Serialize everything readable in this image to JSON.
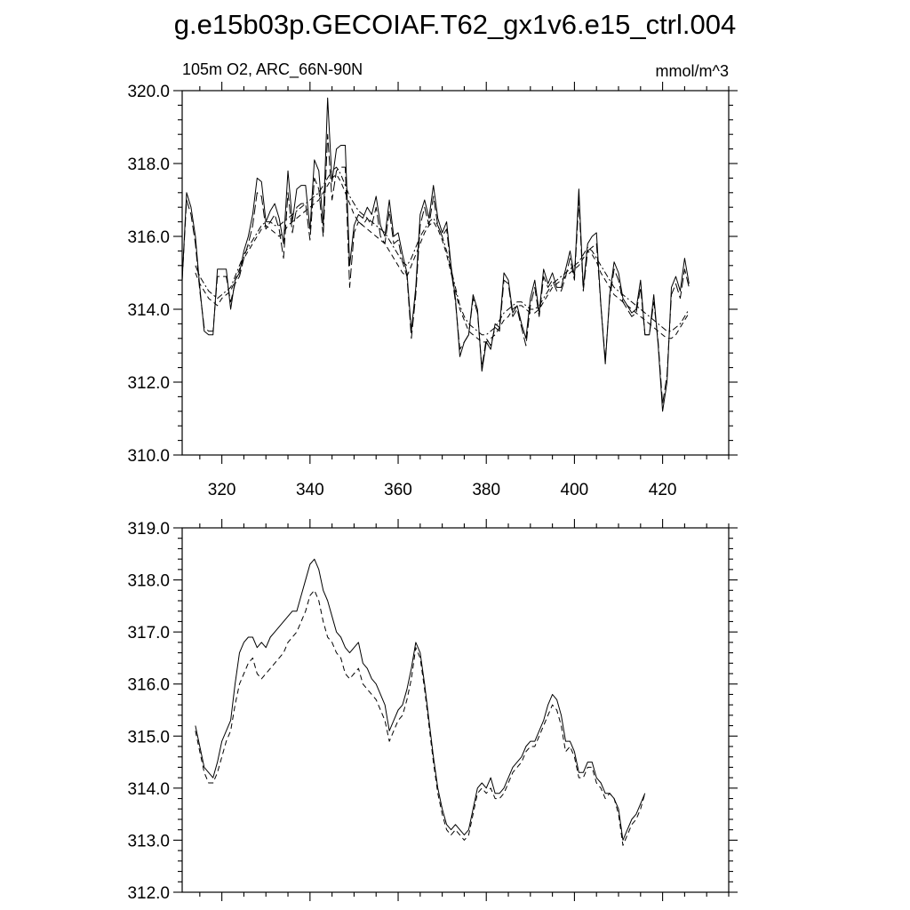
{
  "title": "g.e15b03p.GECOIAF.T62_gx1v6.e15_ctrl.004",
  "chart_data": [
    {
      "type": "line",
      "left_label": "105m O2, ARC_66N-90N",
      "right_label": "mmol/m^3",
      "xlim": [
        311,
        435
      ],
      "ylim": [
        310,
        320
      ],
      "x_ticks": [
        320,
        340,
        360,
        380,
        400,
        420
      ],
      "x_tick_labels": [
        "320",
        "340",
        "360",
        "380",
        "400",
        "420"
      ],
      "y_ticks": [
        310,
        312,
        314,
        316,
        318,
        320
      ],
      "y_tick_labels": [
        "310.0",
        "312.0",
        "314.0",
        "316.0",
        "318.0",
        "320.0"
      ],
      "series": [
        {
          "style": "solid",
          "x0": 311,
          "dx": 1,
          "values": [
            314.8,
            317.2,
            316.8,
            316.0,
            314.6,
            313.4,
            313.3,
            313.3,
            315.1,
            315.1,
            315.1,
            314.0,
            314.8,
            315.0,
            315.6,
            316.0,
            316.6,
            317.6,
            317.5,
            316.4,
            316.7,
            316.9,
            316.5,
            315.8,
            317.8,
            316.4,
            317.3,
            317.4,
            317.4,
            316.2,
            318.1,
            317.8,
            316.3,
            319.8,
            317.5,
            318.4,
            318.5,
            318.5,
            315.2,
            316.3,
            316.6,
            316.5,
            316.8,
            316.6,
            317.1,
            316.3,
            316.0,
            317.0,
            316.0,
            316.1,
            315.5,
            315.0,
            313.4,
            314.6,
            316.6,
            317.0,
            316.5,
            317.4,
            316.5,
            316.1,
            316.4,
            315.2,
            314.3,
            312.7,
            313.1,
            313.3,
            314.4,
            314.0,
            312.3,
            313.1,
            312.9,
            313.6,
            313.5,
            315.0,
            314.8,
            313.9,
            314.1,
            313.6,
            313.2,
            314.3,
            314.8,
            313.9,
            315.1,
            314.7,
            315.0,
            314.6,
            314.6,
            315.1,
            315.6,
            314.9,
            317.3,
            314.6,
            315.8,
            316.0,
            316.1,
            314.1,
            312.5,
            314.4,
            315.3,
            315.0,
            314.3,
            314.1,
            313.9,
            314.0,
            314.8,
            313.3,
            313.3,
            314.4,
            313.0,
            311.2,
            312.0,
            314.6,
            314.9,
            314.5,
            315.4,
            314.7
          ]
        },
        {
          "style": "long-dash",
          "x0": 311,
          "dx": 1,
          "values": [
            314.8,
            317.0,
            316.6,
            315.8,
            314.5,
            313.5,
            313.4,
            313.4,
            314.9,
            314.9,
            314.9,
            314.2,
            314.7,
            314.9,
            315.4,
            315.8,
            316.3,
            317.2,
            317.1,
            316.2,
            316.4,
            316.6,
            316.2,
            315.4,
            317.2,
            316.1,
            316.8,
            316.9,
            316.9,
            315.9,
            317.6,
            317.3,
            316.0,
            318.8,
            317.0,
            317.8,
            317.9,
            317.9,
            314.6,
            316.1,
            316.4,
            316.3,
            316.5,
            316.3,
            316.8,
            316.0,
            315.8,
            316.7,
            315.8,
            315.9,
            315.3,
            314.9,
            313.2,
            314.4,
            316.3,
            316.8,
            316.3,
            317.1,
            316.3,
            316.0,
            316.2,
            315.1,
            314.2,
            312.9,
            313.1,
            313.3,
            314.3,
            313.9,
            312.4,
            313.2,
            313.0,
            313.5,
            313.4,
            314.8,
            314.7,
            313.8,
            314.0,
            313.5,
            313.0,
            314.1,
            314.6,
            313.8,
            314.9,
            314.6,
            314.8,
            314.5,
            314.5,
            314.9,
            315.4,
            314.8,
            317.0,
            314.5,
            315.6,
            315.7,
            315.8,
            314.1,
            312.6,
            314.3,
            315.1,
            314.8,
            314.2,
            314.0,
            313.8,
            313.9,
            314.6,
            313.3,
            313.3,
            314.2,
            313.1,
            311.4,
            312.2,
            314.4,
            314.7,
            314.3,
            315.1,
            314.6
          ]
        },
        {
          "style": "dash",
          "x0": 314,
          "dx": 1,
          "values": [
            315.0,
            314.7,
            314.5,
            314.3,
            314.2,
            314.1,
            314.3,
            314.4,
            314.5,
            314.8,
            315.1,
            315.4,
            315.6,
            315.8,
            316.0,
            316.2,
            316.3,
            316.2,
            316.1,
            316.0,
            316.1,
            316.3,
            316.4,
            316.5,
            316.6,
            316.7,
            316.8,
            316.9,
            317.0,
            317.2,
            317.4,
            317.6,
            317.7,
            317.5,
            317.2,
            316.9,
            316.6,
            316.4,
            316.3,
            316.2,
            316.1,
            316.0,
            315.9,
            315.8,
            315.6,
            315.4,
            315.2,
            315.0,
            314.9,
            315.2,
            315.5,
            315.8,
            316.1,
            316.3,
            316.4,
            316.2,
            315.9,
            315.5,
            315.0,
            314.5,
            314.0,
            313.7,
            313.4,
            313.3,
            313.2,
            313.1,
            313.1,
            313.2,
            313.3,
            313.5,
            313.7,
            313.8,
            314.0,
            314.1,
            314.1,
            314.0,
            313.9,
            313.9,
            314.0,
            314.2,
            314.4,
            314.6,
            314.7,
            314.8,
            314.9,
            315.0,
            315.1,
            315.2,
            315.4,
            315.6,
            315.5,
            315.3,
            315.0,
            314.8,
            314.6,
            314.4,
            314.3,
            314.2,
            314.1,
            314.0,
            313.9,
            313.8,
            313.7,
            313.6,
            313.5,
            313.4,
            313.3,
            313.2,
            313.2,
            313.3,
            313.5,
            313.7,
            313.9
          ]
        },
        {
          "style": "dot-dash",
          "x0": 314,
          "dx": 1,
          "values": [
            315.2,
            314.9,
            314.7,
            314.5,
            314.4,
            314.3,
            314.4,
            314.5,
            314.6,
            314.9,
            315.2,
            315.5,
            315.7,
            315.9,
            316.1,
            316.3,
            316.4,
            316.4,
            316.3,
            316.3,
            316.4,
            316.5,
            316.6,
            316.7,
            316.8,
            316.9,
            317.0,
            317.1,
            317.2,
            317.4,
            317.6,
            317.8,
            317.9,
            317.7,
            317.4,
            317.1,
            316.9,
            316.7,
            316.6,
            316.5,
            316.4,
            316.3,
            316.2,
            316.1,
            315.9,
            315.7,
            315.5,
            315.3,
            315.2,
            315.4,
            315.7,
            316.0,
            316.2,
            316.4,
            316.5,
            316.3,
            316.0,
            315.6,
            315.1,
            314.6,
            314.1,
            313.8,
            313.6,
            313.5,
            313.4,
            313.3,
            313.3,
            313.4,
            313.5,
            313.7,
            313.9,
            314.0,
            314.1,
            314.2,
            314.2,
            314.1,
            314.0,
            314.0,
            314.1,
            314.3,
            314.5,
            314.7,
            314.8,
            314.9,
            315.0,
            315.1,
            315.2,
            315.3,
            315.5,
            315.7,
            315.6,
            315.4,
            315.2,
            315.0,
            314.8,
            314.6,
            314.5,
            314.4,
            314.3,
            314.2,
            314.1,
            314.0,
            313.9,
            313.8,
            313.7,
            313.6,
            313.5,
            313.4,
            313.4,
            313.5,
            313.6,
            313.8,
            314.0
          ]
        }
      ]
    },
    {
      "type": "line",
      "xlim": [
        311,
        435
      ],
      "ylim": [
        312,
        319
      ],
      "x_ticks": [
        320,
        340,
        360,
        380,
        400,
        420
      ],
      "y_ticks": [
        312,
        313,
        314,
        315,
        316,
        317,
        318,
        319
      ],
      "y_tick_labels": [
        "312.0",
        "313.0",
        "314.0",
        "315.0",
        "316.0",
        "317.0",
        "318.0",
        "319.0"
      ],
      "series": [
        {
          "style": "solid",
          "x0": 314,
          "dx": 1,
          "values": [
            315.2,
            314.8,
            314.4,
            314.3,
            314.2,
            314.5,
            314.9,
            315.1,
            315.3,
            316.0,
            316.6,
            316.8,
            316.9,
            316.9,
            316.7,
            316.8,
            316.7,
            316.9,
            317.0,
            317.1,
            317.2,
            317.3,
            317.4,
            317.4,
            317.7,
            318.0,
            318.3,
            318.4,
            318.2,
            317.8,
            317.6,
            317.3,
            317.0,
            316.9,
            316.7,
            316.6,
            316.7,
            316.8,
            316.4,
            316.3,
            316.1,
            316.0,
            315.8,
            315.6,
            315.1,
            315.3,
            315.5,
            315.6,
            315.9,
            316.3,
            316.8,
            316.6,
            316.0,
            315.3,
            314.6,
            314.0,
            313.6,
            313.3,
            313.2,
            313.3,
            313.2,
            313.1,
            313.2,
            313.6,
            314.0,
            314.1,
            314.0,
            314.2,
            313.9,
            313.9,
            314.0,
            314.2,
            314.4,
            314.5,
            314.6,
            314.8,
            314.9,
            314.9,
            315.1,
            315.3,
            315.6,
            315.8,
            315.7,
            315.4,
            314.9,
            314.9,
            314.7,
            314.3,
            314.3,
            314.5,
            314.5,
            314.2,
            314.1,
            313.9,
            313.9,
            313.8,
            313.6,
            313.0,
            313.2,
            313.4,
            313.5,
            313.7,
            313.9
          ]
        },
        {
          "style": "dash",
          "x0": 314,
          "dx": 1,
          "values": [
            315.1,
            314.7,
            314.3,
            314.1,
            314.1,
            314.3,
            314.6,
            314.9,
            315.1,
            315.6,
            316.0,
            316.2,
            316.4,
            316.5,
            316.2,
            316.1,
            316.2,
            316.3,
            316.4,
            316.5,
            316.6,
            316.8,
            316.9,
            317.0,
            317.2,
            317.4,
            317.7,
            317.8,
            317.6,
            317.2,
            316.9,
            316.8,
            316.6,
            316.5,
            316.2,
            316.1,
            316.2,
            316.3,
            316.0,
            315.9,
            315.8,
            315.7,
            315.5,
            315.3,
            314.9,
            315.1,
            315.3,
            315.4,
            315.7,
            316.1,
            316.7,
            316.5,
            315.9,
            315.2,
            314.5,
            313.9,
            313.5,
            313.2,
            313.1,
            313.2,
            313.1,
            313.0,
            313.1,
            313.5,
            313.9,
            314.0,
            313.9,
            314.0,
            313.8,
            313.8,
            313.9,
            314.1,
            314.3,
            314.4,
            314.5,
            314.7,
            314.8,
            314.8,
            315.0,
            315.2,
            315.4,
            315.6,
            315.5,
            315.2,
            314.7,
            314.8,
            314.6,
            314.2,
            314.2,
            314.4,
            314.4,
            314.1,
            314.0,
            313.8,
            313.9,
            313.8,
            313.5,
            312.9,
            313.1,
            313.3,
            313.4,
            313.6,
            313.9
          ]
        }
      ]
    }
  ]
}
